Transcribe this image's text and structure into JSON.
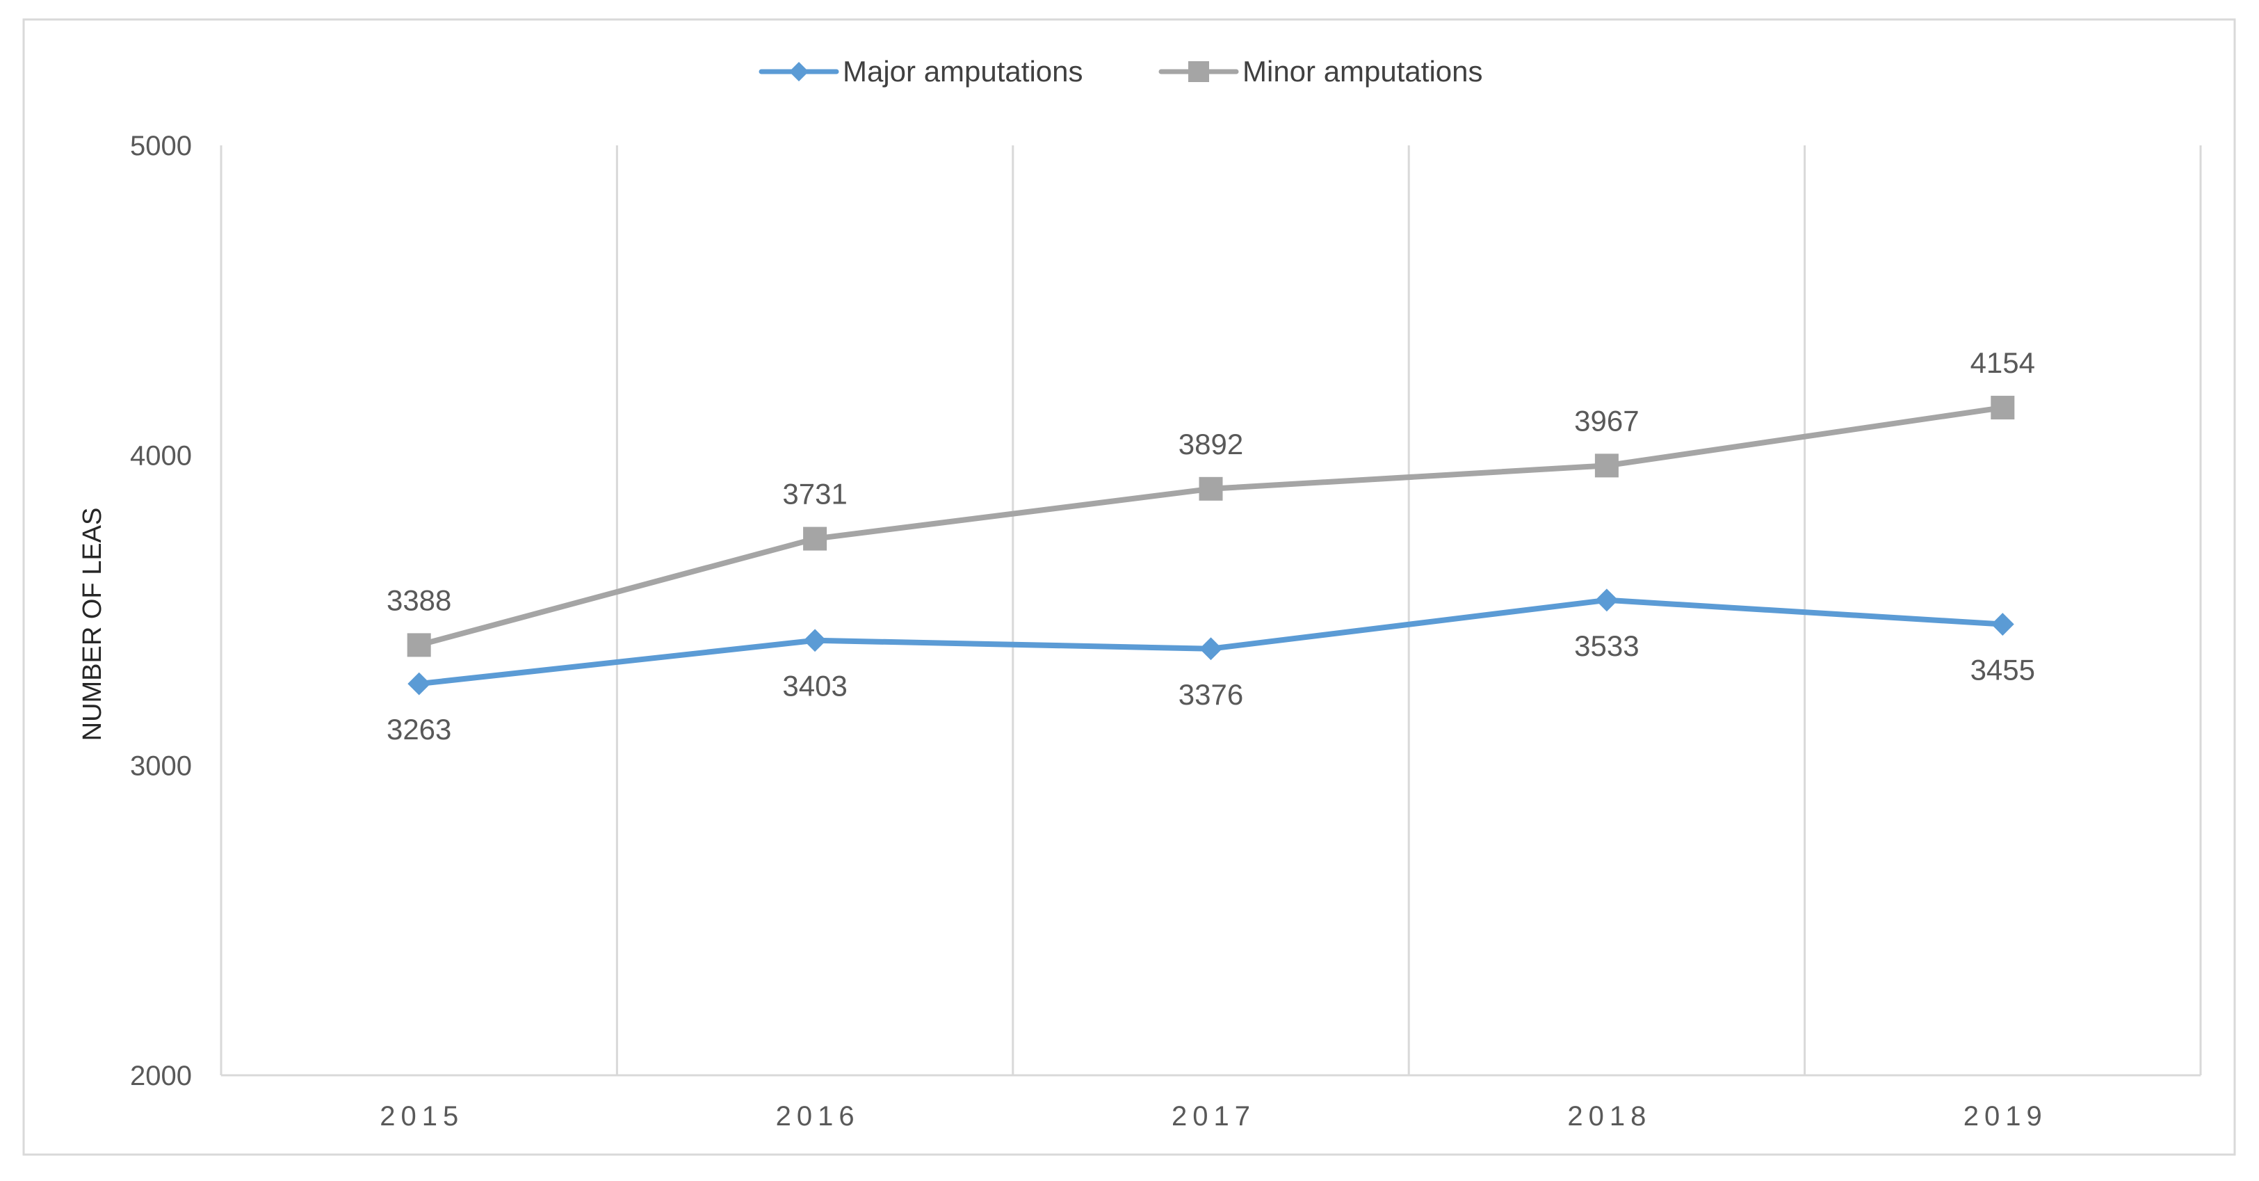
{
  "chart_data": {
    "type": "line",
    "title": "",
    "xlabel": "",
    "ylabel": "NUMBER OF LEAS",
    "categories": [
      "2015",
      "2016",
      "2017",
      "2018",
      "2019"
    ],
    "y_ticks": [
      "2000",
      "3000",
      "4000",
      "5000"
    ],
    "ylim": [
      2000,
      5000
    ],
    "grid": "vertical",
    "legend": "top-center",
    "series": [
      {
        "name": "Major amputations",
        "color": "#5B9BD5",
        "marker": "diamond",
        "values": [
          3263,
          3403,
          3376,
          3533,
          3455
        ],
        "labels": [
          "3263",
          "3403",
          "3376",
          "3533",
          "3455"
        ],
        "label_position": "below"
      },
      {
        "name": "Minor amputations",
        "color": "#A5A5A5",
        "marker": "square",
        "values": [
          3388,
          3731,
          3892,
          3967,
          4154
        ],
        "labels": [
          "3388",
          "3731",
          "3892",
          "3967",
          "4154"
        ],
        "label_position": "above"
      }
    ]
  }
}
